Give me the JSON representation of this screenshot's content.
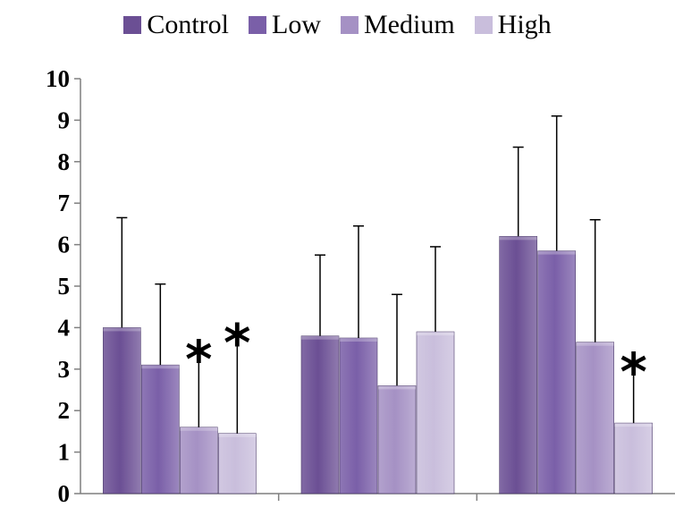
{
  "chart_data": {
    "type": "bar",
    "categories": [
      "",
      "",
      ""
    ],
    "series": [
      {
        "name": "Control",
        "values": [
          4.0,
          3.8,
          6.2
        ],
        "errors": [
          2.65,
          1.95,
          2.15
        ],
        "color": "#6b4f94"
      },
      {
        "name": "Low",
        "values": [
          3.1,
          3.75,
          5.85
        ],
        "errors": [
          1.95,
          2.7,
          3.25
        ],
        "color": "#7a5fa8"
      },
      {
        "name": "Medium",
        "values": [
          1.6,
          2.6,
          3.65
        ],
        "errors": [
          1.85,
          2.2,
          2.95
        ],
        "color": "#a591c4"
      },
      {
        "name": "High",
        "values": [
          1.45,
          3.9,
          1.7
        ],
        "errors": [
          2.4,
          2.05,
          1.45
        ],
        "color": "#c9bedc"
      }
    ],
    "ylim": [
      0,
      10
    ],
    "yticks": [
      0,
      1,
      2,
      3,
      4,
      5,
      6,
      7,
      8,
      9,
      10
    ],
    "grid": false,
    "legend": "top-center",
    "annotations": [
      {
        "text": "*",
        "series": 2,
        "category": 0
      },
      {
        "text": "*",
        "series": 3,
        "category": 0
      },
      {
        "text": "*",
        "series": 3,
        "category": 2
      }
    ]
  }
}
